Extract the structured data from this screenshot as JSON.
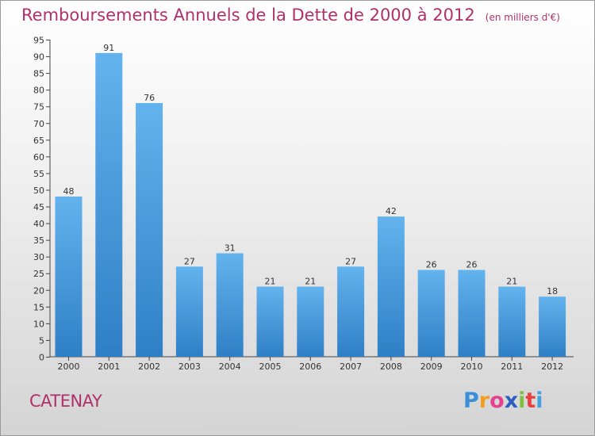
{
  "title": "Remboursements Annuels de la Dette de 2000 à 2012",
  "unit_note": "(en milliers d'€)",
  "commune": "CATENAY",
  "brand": {
    "letters": [
      "P",
      "r",
      "o",
      "x",
      "i",
      "t",
      "i"
    ],
    "colors": [
      "#3a8fd8",
      "#f0a020",
      "#e84090",
      "#2a60c0",
      "#80c040",
      "#e84040",
      "#40a0e0"
    ]
  },
  "colors": {
    "bar_light": "#63b3ee",
    "bar_dark": "#2f7fc6",
    "title": "#b0306a",
    "axis": "#444444"
  },
  "chart_data": {
    "type": "bar",
    "title": "Remboursements Annuels de la Dette de 2000 à 2012",
    "categories": [
      "2000",
      "2001",
      "2002",
      "2003",
      "2004",
      "2005",
      "2006",
      "2007",
      "2008",
      "2009",
      "2010",
      "2011",
      "2012"
    ],
    "values": [
      48,
      91,
      76,
      27,
      31,
      21,
      21,
      27,
      42,
      26,
      26,
      21,
      18
    ],
    "ylim": [
      0,
      95
    ],
    "yticks": [
      0,
      5,
      10,
      15,
      20,
      25,
      30,
      35,
      40,
      45,
      50,
      55,
      60,
      65,
      70,
      75,
      80,
      85,
      90,
      95
    ],
    "xlabel": "",
    "ylabel": "",
    "grid": false,
    "data_labels": true
  }
}
